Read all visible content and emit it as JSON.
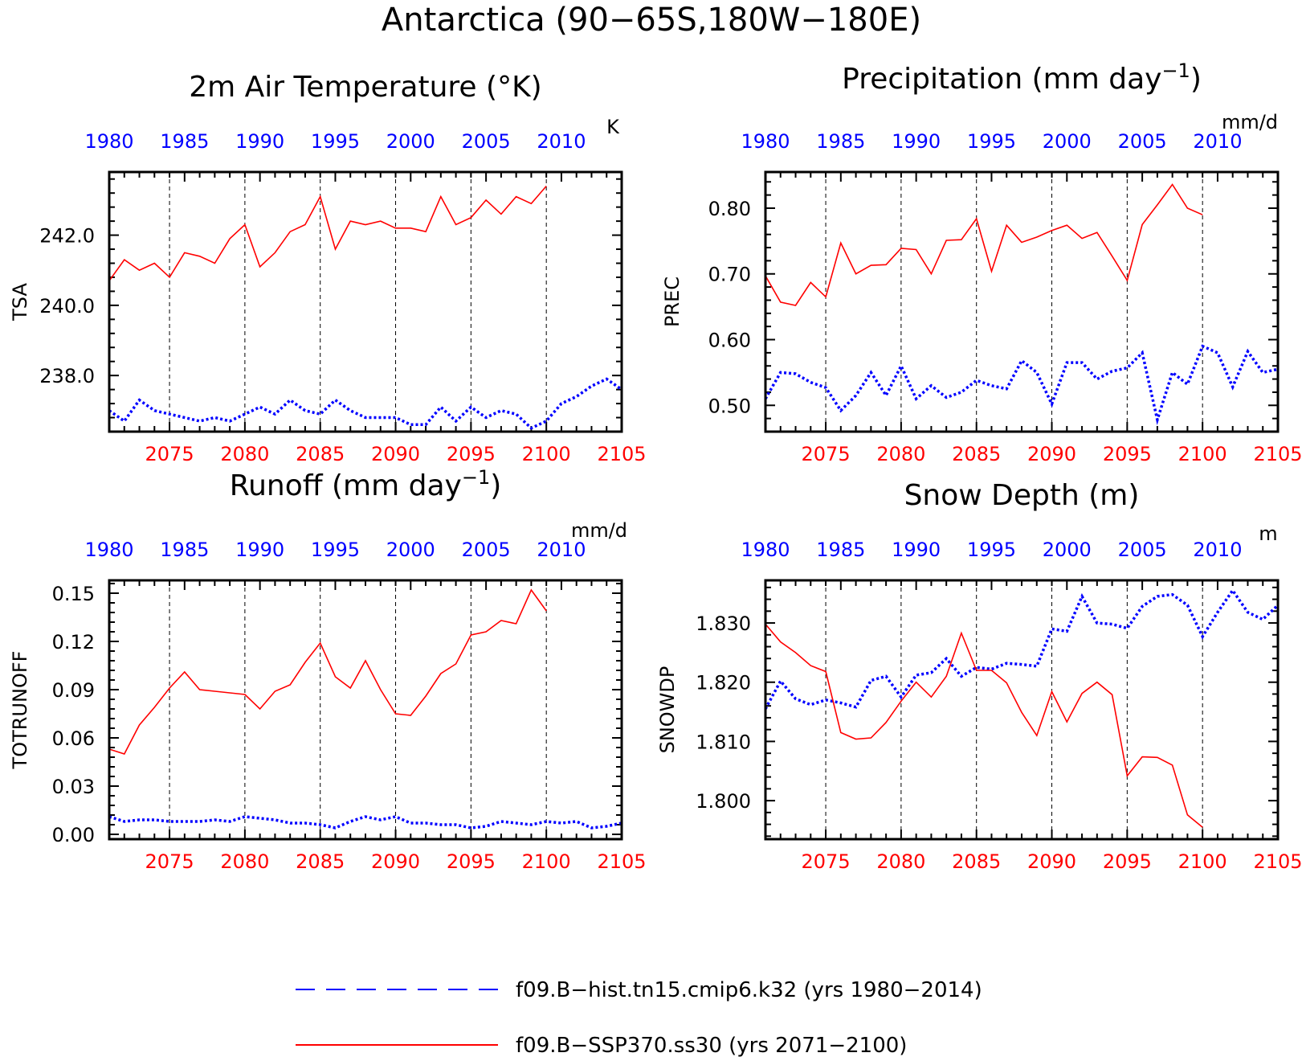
{
  "figure": {
    "title": "Antarctica (90−65S,180W−180E)",
    "colors": {
      "historical": "#0000ff",
      "scenario": "#ff0000",
      "axis": "#000000"
    }
  },
  "legend": {
    "placement": "bottom-center",
    "items": [
      {
        "label": "f09.B−hist.tn15.cmip6.k32 (yrs 1980−2014)",
        "color": "#0000ff",
        "style": "dashed"
      },
      {
        "label": "f09.B−SSP370.ss30 (yrs 2071−2100)",
        "color": "#ff0000",
        "style": "solid"
      }
    ]
  },
  "chart_data": [
    {
      "type": "line",
      "title": "2m Air Temperature (°K)",
      "ylabel": "TSA",
      "units": "K",
      "bottom_axis": {
        "ticks": [
          2075,
          2080,
          2085,
          2090,
          2095,
          2100,
          2105
        ],
        "range": [
          2071,
          2105
        ]
      },
      "top_axis": {
        "ticks": [
          1980,
          1985,
          1990,
          1995,
          2000,
          2005,
          2010
        ],
        "range": [
          1980,
          2014
        ]
      },
      "ylim": [
        236.4,
        243.8
      ],
      "yticks": [
        238.0,
        240.0,
        242.0
      ],
      "ytick_labels": [
        "238.0",
        "240.0",
        "242.0"
      ],
      "grid": "vertical dashed at x ticks",
      "series": [
        {
          "name": "f09.B−hist.tn15.cmip6.k32 (yrs 1980−2014)",
          "axis": "top",
          "x": [
            1980,
            1981,
            1982,
            1983,
            1984,
            1985,
            1986,
            1987,
            1988,
            1989,
            1990,
            1991,
            1992,
            1993,
            1994,
            1995,
            1996,
            1997,
            1998,
            1999,
            2000,
            2001,
            2002,
            2003,
            2004,
            2005,
            2006,
            2007,
            2008,
            2009,
            2010,
            2011,
            2012,
            2013,
            2014
          ],
          "values": [
            237.0,
            236.7,
            237.3,
            237.0,
            236.9,
            236.8,
            236.7,
            236.8,
            236.7,
            236.9,
            237.1,
            236.9,
            237.3,
            237.0,
            236.9,
            237.3,
            237.0,
            236.8,
            236.8,
            236.8,
            236.6,
            236.6,
            237.1,
            236.7,
            237.1,
            236.8,
            237.0,
            236.9,
            236.5,
            236.7,
            237.2,
            237.4,
            237.7,
            237.9,
            237.6
          ]
        },
        {
          "name": "f09.B−SSP370.ss30 (yrs 2071−2100)",
          "axis": "bottom",
          "x": [
            2071,
            2072,
            2073,
            2074,
            2075,
            2076,
            2077,
            2078,
            2079,
            2080,
            2081,
            2082,
            2083,
            2084,
            2085,
            2086,
            2087,
            2088,
            2089,
            2090,
            2091,
            2092,
            2093,
            2094,
            2095,
            2096,
            2097,
            2098,
            2099,
            2100
          ],
          "values": [
            240.7,
            241.3,
            241.0,
            241.2,
            240.8,
            241.5,
            241.4,
            241.2,
            241.9,
            242.3,
            241.1,
            241.5,
            242.1,
            242.3,
            243.1,
            241.6,
            242.4,
            242.3,
            242.4,
            242.2,
            242.2,
            242.1,
            243.1,
            242.3,
            242.5,
            243.0,
            242.6,
            243.1,
            242.9,
            243.4
          ]
        }
      ]
    },
    {
      "type": "line",
      "title": "Precipitation (mm day",
      "title_superscript": "−1",
      "title_suffix": ")",
      "ylabel": "PREC",
      "units": "mm/d",
      "bottom_axis": {
        "ticks": [
          2075,
          2080,
          2085,
          2090,
          2095,
          2100,
          2105
        ],
        "range": [
          2071,
          2105
        ]
      },
      "top_axis": {
        "ticks": [
          1980,
          1985,
          1990,
          1995,
          2000,
          2005,
          2010
        ],
        "range": [
          1980,
          2014
        ]
      },
      "ylim": [
        0.46,
        0.855
      ],
      "yticks": [
        0.5,
        0.6,
        0.7,
        0.8
      ],
      "ytick_labels": [
        "0.50",
        "0.60",
        "0.70",
        "0.80"
      ],
      "grid": "vertical dashed at x ticks",
      "series": [
        {
          "name": "f09.B−hist.tn15.cmip6.k32 (yrs 1980−2014)",
          "axis": "top",
          "x": [
            1980,
            1981,
            1982,
            1983,
            1984,
            1985,
            1986,
            1987,
            1988,
            1989,
            1990,
            1991,
            1992,
            1993,
            1994,
            1995,
            1996,
            1997,
            1998,
            1999,
            2000,
            2001,
            2002,
            2003,
            2004,
            2005,
            2006,
            2007,
            2008,
            2009,
            2010,
            2011,
            2012,
            2013,
            2014
          ],
          "values": [
            0.51,
            0.55,
            0.548,
            0.535,
            0.527,
            0.492,
            0.515,
            0.55,
            0.515,
            0.56,
            0.51,
            0.53,
            0.512,
            0.52,
            0.538,
            0.53,
            0.525,
            0.568,
            0.55,
            0.502,
            0.565,
            0.565,
            0.54,
            0.552,
            0.557,
            0.58,
            0.478,
            0.55,
            0.532,
            0.59,
            0.58,
            0.528,
            0.582,
            0.55,
            0.555
          ]
        },
        {
          "name": "f09.B−SSP370.ss30 (yrs 2071−2100)",
          "axis": "bottom",
          "x": [
            2071,
            2072,
            2073,
            2074,
            2075,
            2076,
            2077,
            2078,
            2079,
            2080,
            2081,
            2082,
            2083,
            2084,
            2085,
            2086,
            2087,
            2088,
            2089,
            2090,
            2091,
            2092,
            2093,
            2094,
            2095,
            2096,
            2097,
            2098,
            2099,
            2100
          ],
          "values": [
            0.697,
            0.657,
            0.652,
            0.687,
            0.665,
            0.747,
            0.7,
            0.713,
            0.714,
            0.739,
            0.737,
            0.7,
            0.751,
            0.752,
            0.784,
            0.704,
            0.774,
            0.748,
            0.756,
            0.766,
            0.774,
            0.754,
            0.763,
            0.727,
            0.69,
            0.775,
            0.805,
            0.836,
            0.8,
            0.79
          ]
        }
      ]
    },
    {
      "type": "line",
      "title": "Runoff (mm day",
      "title_superscript": "−1",
      "title_suffix": ")",
      "ylabel": "TOTRUNOFF",
      "units": "mm/d",
      "bottom_axis": {
        "ticks": [
          2075,
          2080,
          2085,
          2090,
          2095,
          2100,
          2105
        ],
        "range": [
          2071,
          2105
        ]
      },
      "top_axis": {
        "ticks": [
          1980,
          1985,
          1990,
          1995,
          2000,
          2005,
          2010
        ],
        "range": [
          1980,
          2014
        ]
      },
      "ylim": [
        -0.003,
        0.158
      ],
      "yticks": [
        0.0,
        0.03,
        0.06,
        0.09,
        0.12,
        0.15
      ],
      "ytick_labels": [
        "0.00",
        "0.03",
        "0.06",
        "0.09",
        "0.12",
        "0.15"
      ],
      "grid": "vertical dashed at x ticks",
      "series": [
        {
          "name": "f09.B−hist.tn15.cmip6.k32 (yrs 1980−2014)",
          "axis": "top",
          "x": [
            1980,
            1981,
            1982,
            1983,
            1984,
            1985,
            1986,
            1987,
            1988,
            1989,
            1990,
            1991,
            1992,
            1993,
            1994,
            1995,
            1996,
            1997,
            1998,
            1999,
            2000,
            2001,
            2002,
            2003,
            2004,
            2005,
            2006,
            2007,
            2008,
            2009,
            2010,
            2011,
            2012,
            2013,
            2014
          ],
          "values": [
            0.011,
            0.008,
            0.009,
            0.009,
            0.008,
            0.008,
            0.008,
            0.009,
            0.008,
            0.011,
            0.01,
            0.009,
            0.007,
            0.007,
            0.006,
            0.004,
            0.008,
            0.011,
            0.009,
            0.011,
            0.007,
            0.007,
            0.006,
            0.006,
            0.004,
            0.005,
            0.008,
            0.007,
            0.006,
            0.008,
            0.007,
            0.008,
            0.004,
            0.005,
            0.007
          ]
        },
        {
          "name": "f09.B−SSP370.ss30 (yrs 2071−2100)",
          "axis": "bottom",
          "x": [
            2071,
            2072,
            2073,
            2074,
            2075,
            2076,
            2077,
            2078,
            2079,
            2080,
            2081,
            2082,
            2083,
            2084,
            2085,
            2086,
            2087,
            2088,
            2089,
            2090,
            2091,
            2092,
            2093,
            2094,
            2095,
            2096,
            2097,
            2098,
            2099,
            2100
          ],
          "values": [
            0.053,
            0.05,
            0.068,
            0.079,
            0.091,
            0.101,
            0.09,
            0.089,
            0.088,
            0.087,
            0.078,
            0.089,
            0.093,
            0.107,
            0.119,
            0.098,
            0.091,
            0.108,
            0.09,
            0.075,
            0.074,
            0.086,
            0.1,
            0.106,
            0.124,
            0.126,
            0.133,
            0.131,
            0.152,
            0.139
          ]
        }
      ]
    },
    {
      "type": "line",
      "title": "Snow Depth (m)",
      "ylabel": "SNOWDP",
      "units": "m",
      "bottom_axis": {
        "ticks": [
          2075,
          2080,
          2085,
          2090,
          2095,
          2100,
          2105
        ],
        "range": [
          2071,
          2105
        ]
      },
      "top_axis": {
        "ticks": [
          1980,
          1985,
          1990,
          1995,
          2000,
          2005,
          2010
        ],
        "range": [
          1980,
          2014
        ]
      },
      "ylim": [
        1.7935,
        1.8372
      ],
      "yticks": [
        1.8,
        1.81,
        1.82,
        1.83
      ],
      "ytick_labels": [
        "1.800",
        "1.810",
        "1.820",
        "1.830"
      ],
      "grid": "vertical dashed at x ticks",
      "series": [
        {
          "name": "f09.B−hist.tn15.cmip6.k32 (yrs 1980−2014)",
          "axis": "top",
          "x": [
            1980,
            1981,
            1982,
            1983,
            1984,
            1985,
            1986,
            1987,
            1988,
            1989,
            1990,
            1991,
            1992,
            1993,
            1994,
            1995,
            1996,
            1997,
            1998,
            1999,
            2000,
            2001,
            2002,
            2003,
            2004,
            2005,
            2006,
            2007,
            2008,
            2009,
            2010,
            2011,
            2012,
            2013,
            2014
          ],
          "values": [
            1.8155,
            1.8202,
            1.8172,
            1.8162,
            1.817,
            1.8165,
            1.8158,
            1.8203,
            1.821,
            1.8175,
            1.8212,
            1.8216,
            1.824,
            1.821,
            1.8225,
            1.8222,
            1.8232,
            1.823,
            1.8227,
            1.829,
            1.8286,
            1.8345,
            1.83,
            1.8298,
            1.8291,
            1.8328,
            1.8345,
            1.8348,
            1.833,
            1.8277,
            1.8318,
            1.8355,
            1.8318,
            1.8306,
            1.833
          ]
        },
        {
          "name": "f09.B−SSP370.ss30 (yrs 2071−2100)",
          "axis": "bottom",
          "x": [
            2071,
            2072,
            2073,
            2074,
            2075,
            2076,
            2077,
            2078,
            2079,
            2080,
            2081,
            2082,
            2083,
            2084,
            2085,
            2086,
            2087,
            2088,
            2089,
            2090,
            2091,
            2092,
            2093,
            2094,
            2095,
            2096,
            2097,
            2098,
            2099,
            2100
          ],
          "values": [
            1.8298,
            1.8268,
            1.825,
            1.8228,
            1.8218,
            1.8115,
            1.8104,
            1.8106,
            1.8132,
            1.8168,
            1.82,
            1.8175,
            1.821,
            1.8283,
            1.822,
            1.822,
            1.8199,
            1.8149,
            1.811,
            1.8184,
            1.8133,
            1.8181,
            1.82,
            1.8179,
            1.8042,
            1.8074,
            1.8073,
            1.806,
            1.7976,
            1.7955
          ]
        }
      ]
    }
  ]
}
